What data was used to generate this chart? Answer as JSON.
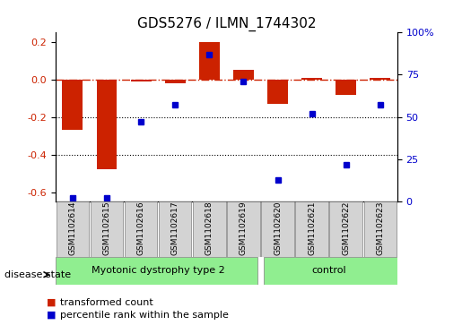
{
  "title": "GDS5276 / ILMN_1744302",
  "samples": [
    "GSM1102614",
    "GSM1102615",
    "GSM1102616",
    "GSM1102617",
    "GSM1102618",
    "GSM1102619",
    "GSM1102620",
    "GSM1102621",
    "GSM1102622",
    "GSM1102623"
  ],
  "red_values": [
    -0.27,
    -0.48,
    -0.01,
    -0.02,
    0.2,
    0.05,
    -0.13,
    0.01,
    -0.08,
    0.01
  ],
  "blue_values": [
    2,
    2,
    47,
    57,
    87,
    71,
    13,
    52,
    22,
    57
  ],
  "ylim_left": [
    -0.65,
    0.25
  ],
  "ylim_right": [
    0,
    100
  ],
  "yticks_left": [
    -0.6,
    -0.4,
    -0.2,
    0.0,
    0.2
  ],
  "yticks_right": [
    0,
    25,
    50,
    75,
    100
  ],
  "disease_groups": [
    {
      "label": "Myotonic dystrophy type 2",
      "start": 0,
      "end": 6,
      "color": "#90EE90"
    },
    {
      "label": "control",
      "start": 6,
      "end": 10,
      "color": "#90EE90"
    }
  ],
  "red_color": "#CC2200",
  "blue_color": "#0000CC",
  "dashed_line_color": "#CC2200",
  "grid_color": "#000000",
  "bar_width": 0.6,
  "legend_red": "transformed count",
  "legend_blue": "percentile rank within the sample"
}
